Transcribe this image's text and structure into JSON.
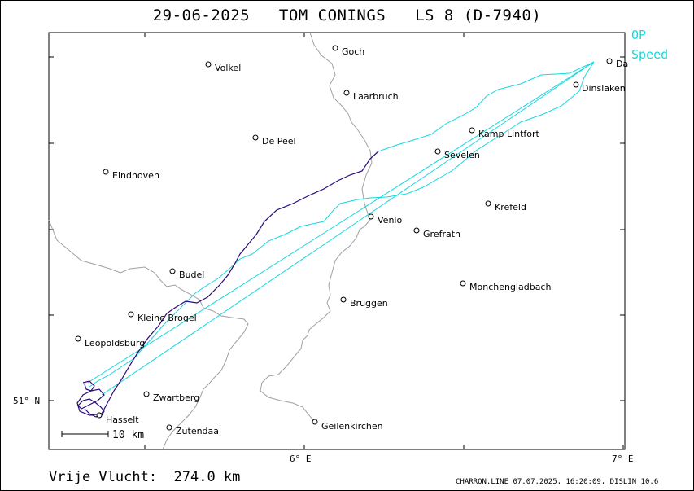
{
  "header": {
    "date": "29-06-2025",
    "pilot": "TOM CONINGS",
    "glider": "LS 8 (D-7940)"
  },
  "legend": {
    "op": "OP",
    "speed": "Speed",
    "color": "#14d9e0"
  },
  "axes": {
    "lat_label": "51° N",
    "lon_label_6": "6° E",
    "lon_label_7": "7° E"
  },
  "scale": {
    "label": "10 km"
  },
  "footer": {
    "distance": "Vrije Vlucht:  274.0 km",
    "software": "CHARRON.LINE 07.07.2025, 16:20:09, DISLIN 10.6"
  },
  "colors": {
    "track_dark": "#2a0a7a",
    "track_cyan": "#14d9e0",
    "border": "#a0a0a0"
  },
  "cities": [
    {
      "id": "goch",
      "name": "Goch"
    },
    {
      "id": "volkel",
      "name": "Volkel"
    },
    {
      "id": "laarbruch",
      "name": "Laarbruch"
    },
    {
      "id": "dinslaken",
      "name": "Dinslaken"
    },
    {
      "id": "da",
      "name": "Da"
    },
    {
      "id": "kamp-lintfort",
      "name": "Kamp Lintfort"
    },
    {
      "id": "de-peel",
      "name": "De Peel"
    },
    {
      "id": "sevelen",
      "name": "Sevelen"
    },
    {
      "id": "eindhoven",
      "name": "Eindhoven"
    },
    {
      "id": "krefeld",
      "name": "Krefeld"
    },
    {
      "id": "venlo",
      "name": "Venlo"
    },
    {
      "id": "grefrath",
      "name": "Grefrath"
    },
    {
      "id": "budel",
      "name": "Budel"
    },
    {
      "id": "monchengladbach",
      "name": "Monchengladbach"
    },
    {
      "id": "bruggen",
      "name": "Bruggen"
    },
    {
      "id": "kleine-brogel",
      "name": "Kleine Brogel"
    },
    {
      "id": "leopoldsburg",
      "name": "Leopoldsburg"
    },
    {
      "id": "zwartberg",
      "name": "Zwartberg"
    },
    {
      "id": "hasselt",
      "name": "Hasselt"
    },
    {
      "id": "zutendaal",
      "name": "Zutendaal"
    },
    {
      "id": "geilenkirchen",
      "name": "Geilenkirchen"
    }
  ]
}
